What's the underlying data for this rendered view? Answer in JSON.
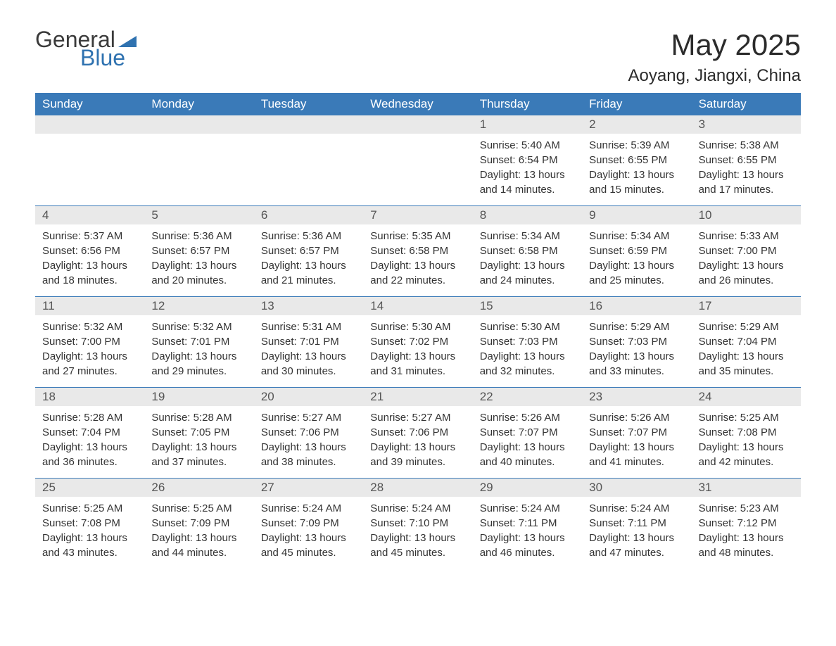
{
  "logo": {
    "word1": "General",
    "word2": "Blue",
    "triangle_color": "#2f72b0",
    "word1_color": "#3a3a3a",
    "word2_color": "#2f72b0"
  },
  "header": {
    "month_title": "May 2025",
    "location": "Aoyang, Jiangxi, China"
  },
  "colors": {
    "header_bar": "#3a7ab8",
    "header_text": "#ffffff",
    "daynum_bg": "#e9e9e9",
    "daynum_text": "#555555",
    "body_text": "#333333",
    "week_divider": "#3a7ab8",
    "background": "#ffffff"
  },
  "weekdays": [
    "Sunday",
    "Monday",
    "Tuesday",
    "Wednesday",
    "Thursday",
    "Friday",
    "Saturday"
  ],
  "weeks": [
    [
      null,
      null,
      null,
      null,
      {
        "n": "1",
        "sunrise": "Sunrise: 5:40 AM",
        "sunset": "Sunset: 6:54 PM",
        "day1": "Daylight: 13 hours",
        "day2": "and 14 minutes."
      },
      {
        "n": "2",
        "sunrise": "Sunrise: 5:39 AM",
        "sunset": "Sunset: 6:55 PM",
        "day1": "Daylight: 13 hours",
        "day2": "and 15 minutes."
      },
      {
        "n": "3",
        "sunrise": "Sunrise: 5:38 AM",
        "sunset": "Sunset: 6:55 PM",
        "day1": "Daylight: 13 hours",
        "day2": "and 17 minutes."
      }
    ],
    [
      {
        "n": "4",
        "sunrise": "Sunrise: 5:37 AM",
        "sunset": "Sunset: 6:56 PM",
        "day1": "Daylight: 13 hours",
        "day2": "and 18 minutes."
      },
      {
        "n": "5",
        "sunrise": "Sunrise: 5:36 AM",
        "sunset": "Sunset: 6:57 PM",
        "day1": "Daylight: 13 hours",
        "day2": "and 20 minutes."
      },
      {
        "n": "6",
        "sunrise": "Sunrise: 5:36 AM",
        "sunset": "Sunset: 6:57 PM",
        "day1": "Daylight: 13 hours",
        "day2": "and 21 minutes."
      },
      {
        "n": "7",
        "sunrise": "Sunrise: 5:35 AM",
        "sunset": "Sunset: 6:58 PM",
        "day1": "Daylight: 13 hours",
        "day2": "and 22 minutes."
      },
      {
        "n": "8",
        "sunrise": "Sunrise: 5:34 AM",
        "sunset": "Sunset: 6:58 PM",
        "day1": "Daylight: 13 hours",
        "day2": "and 24 minutes."
      },
      {
        "n": "9",
        "sunrise": "Sunrise: 5:34 AM",
        "sunset": "Sunset: 6:59 PM",
        "day1": "Daylight: 13 hours",
        "day2": "and 25 minutes."
      },
      {
        "n": "10",
        "sunrise": "Sunrise: 5:33 AM",
        "sunset": "Sunset: 7:00 PM",
        "day1": "Daylight: 13 hours",
        "day2": "and 26 minutes."
      }
    ],
    [
      {
        "n": "11",
        "sunrise": "Sunrise: 5:32 AM",
        "sunset": "Sunset: 7:00 PM",
        "day1": "Daylight: 13 hours",
        "day2": "and 27 minutes."
      },
      {
        "n": "12",
        "sunrise": "Sunrise: 5:32 AM",
        "sunset": "Sunset: 7:01 PM",
        "day1": "Daylight: 13 hours",
        "day2": "and 29 minutes."
      },
      {
        "n": "13",
        "sunrise": "Sunrise: 5:31 AM",
        "sunset": "Sunset: 7:01 PM",
        "day1": "Daylight: 13 hours",
        "day2": "and 30 minutes."
      },
      {
        "n": "14",
        "sunrise": "Sunrise: 5:30 AM",
        "sunset": "Sunset: 7:02 PM",
        "day1": "Daylight: 13 hours",
        "day2": "and 31 minutes."
      },
      {
        "n": "15",
        "sunrise": "Sunrise: 5:30 AM",
        "sunset": "Sunset: 7:03 PM",
        "day1": "Daylight: 13 hours",
        "day2": "and 32 minutes."
      },
      {
        "n": "16",
        "sunrise": "Sunrise: 5:29 AM",
        "sunset": "Sunset: 7:03 PM",
        "day1": "Daylight: 13 hours",
        "day2": "and 33 minutes."
      },
      {
        "n": "17",
        "sunrise": "Sunrise: 5:29 AM",
        "sunset": "Sunset: 7:04 PM",
        "day1": "Daylight: 13 hours",
        "day2": "and 35 minutes."
      }
    ],
    [
      {
        "n": "18",
        "sunrise": "Sunrise: 5:28 AM",
        "sunset": "Sunset: 7:04 PM",
        "day1": "Daylight: 13 hours",
        "day2": "and 36 minutes."
      },
      {
        "n": "19",
        "sunrise": "Sunrise: 5:28 AM",
        "sunset": "Sunset: 7:05 PM",
        "day1": "Daylight: 13 hours",
        "day2": "and 37 minutes."
      },
      {
        "n": "20",
        "sunrise": "Sunrise: 5:27 AM",
        "sunset": "Sunset: 7:06 PM",
        "day1": "Daylight: 13 hours",
        "day2": "and 38 minutes."
      },
      {
        "n": "21",
        "sunrise": "Sunrise: 5:27 AM",
        "sunset": "Sunset: 7:06 PM",
        "day1": "Daylight: 13 hours",
        "day2": "and 39 minutes."
      },
      {
        "n": "22",
        "sunrise": "Sunrise: 5:26 AM",
        "sunset": "Sunset: 7:07 PM",
        "day1": "Daylight: 13 hours",
        "day2": "and 40 minutes."
      },
      {
        "n": "23",
        "sunrise": "Sunrise: 5:26 AM",
        "sunset": "Sunset: 7:07 PM",
        "day1": "Daylight: 13 hours",
        "day2": "and 41 minutes."
      },
      {
        "n": "24",
        "sunrise": "Sunrise: 5:25 AM",
        "sunset": "Sunset: 7:08 PM",
        "day1": "Daylight: 13 hours",
        "day2": "and 42 minutes."
      }
    ],
    [
      {
        "n": "25",
        "sunrise": "Sunrise: 5:25 AM",
        "sunset": "Sunset: 7:08 PM",
        "day1": "Daylight: 13 hours",
        "day2": "and 43 minutes."
      },
      {
        "n": "26",
        "sunrise": "Sunrise: 5:25 AM",
        "sunset": "Sunset: 7:09 PM",
        "day1": "Daylight: 13 hours",
        "day2": "and 44 minutes."
      },
      {
        "n": "27",
        "sunrise": "Sunrise: 5:24 AM",
        "sunset": "Sunset: 7:09 PM",
        "day1": "Daylight: 13 hours",
        "day2": "and 45 minutes."
      },
      {
        "n": "28",
        "sunrise": "Sunrise: 5:24 AM",
        "sunset": "Sunset: 7:10 PM",
        "day1": "Daylight: 13 hours",
        "day2": "and 45 minutes."
      },
      {
        "n": "29",
        "sunrise": "Sunrise: 5:24 AM",
        "sunset": "Sunset: 7:11 PM",
        "day1": "Daylight: 13 hours",
        "day2": "and 46 minutes."
      },
      {
        "n": "30",
        "sunrise": "Sunrise: 5:24 AM",
        "sunset": "Sunset: 7:11 PM",
        "day1": "Daylight: 13 hours",
        "day2": "and 47 minutes."
      },
      {
        "n": "31",
        "sunrise": "Sunrise: 5:23 AM",
        "sunset": "Sunset: 7:12 PM",
        "day1": "Daylight: 13 hours",
        "day2": "and 48 minutes."
      }
    ]
  ]
}
